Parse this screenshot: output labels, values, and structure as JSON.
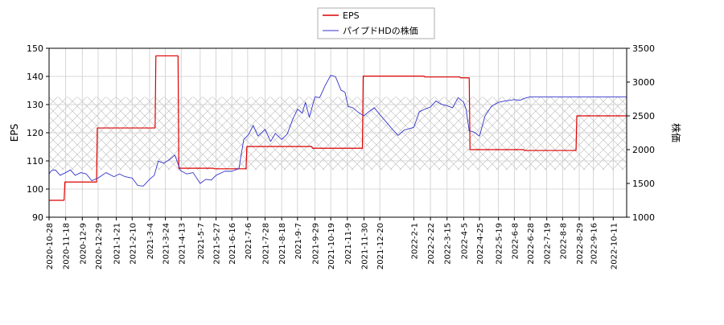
{
  "chart_data": {
    "type": "line",
    "title": "",
    "xlabel": "",
    "ylabel": "EPS",
    "y2label": "株価",
    "ylim": [
      90,
      150
    ],
    "y2lim": [
      1000,
      3500
    ],
    "yticks": [
      90,
      100,
      110,
      120,
      130,
      140,
      150
    ],
    "y2ticks": [
      1000,
      1500,
      2000,
      2500,
      3000,
      3500
    ],
    "xrange": [
      "2020-10-28",
      "2022-10-28"
    ],
    "xticks": [
      "2020-10-28",
      "2020-11-18",
      "2020-12-9",
      "2020-12-29",
      "2021-1-21",
      "2021-2-10",
      "2021-3-4",
      "2021-3-24",
      "2021-4-13",
      "2021-5-7",
      "2021-5-27",
      "2021-6-16",
      "2021-7-6",
      "2021-7-28",
      "2021-8-18",
      "2021-9-7",
      "2021-9-29",
      "2021-10-19",
      "2021-11-9",
      "2021-11-30",
      "2021-12-20",
      "2022-2-1",
      "2022-2-22",
      "2022-3-15",
      "2022-4-5",
      "2022-4-25",
      "2022-5-19",
      "2022-6-8",
      "2022-6-28",
      "2022-7-19",
      "2022-8-8",
      "2022-8-29",
      "2022-9-16",
      "2022-10-11"
    ],
    "grid": true,
    "legend_position": "top-center",
    "band": {
      "axis": "y2",
      "range": [
        1700,
        2780
      ]
    },
    "series": [
      {
        "name": "EPS",
        "axis": "y",
        "color": "#dd0000",
        "step": true,
        "points": [
          [
            "2020-10-28",
            96.0
          ],
          [
            "2020-11-16",
            96.0
          ],
          [
            "2020-11-17",
            102.5
          ],
          [
            "2020-12-27",
            102.5
          ],
          [
            "2020-12-28",
            121.7
          ],
          [
            "2021-3-11",
            121.7
          ],
          [
            "2021-3-12",
            147.3
          ],
          [
            "2021-4-9",
            147.3
          ],
          [
            "2021-4-10",
            107.4
          ],
          [
            "2021-5-24",
            107.4
          ],
          [
            "2021-5-25",
            107.2
          ],
          [
            "2021-7-4",
            107.2
          ],
          [
            "2021-7-5",
            115.1
          ],
          [
            "2021-9-25",
            115.1
          ],
          [
            "2021-9-26",
            114.5
          ],
          [
            "2021-11-28",
            114.5
          ],
          [
            "2021-11-29",
            140.1
          ],
          [
            "2022-2-14",
            140.1
          ],
          [
            "2022-2-15",
            139.8
          ],
          [
            "2022-3-31",
            139.8
          ],
          [
            "2022-4-1",
            139.5
          ],
          [
            "2022-4-12",
            139.5
          ],
          [
            "2022-4-13",
            114.0
          ],
          [
            "2022-6-20",
            114.0
          ],
          [
            "2022-6-21",
            113.7
          ],
          [
            "2022-8-25",
            113.7
          ],
          [
            "2022-8-26",
            126.0
          ],
          [
            "2022-10-28",
            126.0
          ]
        ]
      },
      {
        "name": "パイプドHDの株価",
        "axis": "y2",
        "color": "#3333cc",
        "step": false,
        "points": [
          [
            "2020-10-28",
            1640
          ],
          [
            "2020-10-31",
            1690
          ],
          [
            "2020-11-5",
            1700
          ],
          [
            "2020-11-11",
            1620
          ],
          [
            "2020-11-18",
            1660
          ],
          [
            "2020-11-24",
            1700
          ],
          [
            "2020-11-30",
            1620
          ],
          [
            "2020-12-7",
            1660
          ],
          [
            "2020-12-14",
            1640
          ],
          [
            "2020-12-21",
            1540
          ],
          [
            "2020-12-29",
            1580
          ],
          [
            "2021-1-8",
            1660
          ],
          [
            "2021-1-18",
            1600
          ],
          [
            "2021-1-25",
            1640
          ],
          [
            "2021-2-1",
            1600
          ],
          [
            "2021-2-10",
            1580
          ],
          [
            "2021-2-17",
            1470
          ],
          [
            "2021-2-24",
            1460
          ],
          [
            "2021-3-4",
            1560
          ],
          [
            "2021-3-10",
            1620
          ],
          [
            "2021-3-15",
            1830
          ],
          [
            "2021-3-22",
            1800
          ],
          [
            "2021-3-29",
            1850
          ],
          [
            "2021-4-5",
            1920
          ],
          [
            "2021-4-12",
            1690
          ],
          [
            "2021-4-20",
            1640
          ],
          [
            "2021-4-28",
            1660
          ],
          [
            "2021-5-7",
            1500
          ],
          [
            "2021-5-14",
            1560
          ],
          [
            "2021-5-21",
            1550
          ],
          [
            "2021-5-27",
            1620
          ],
          [
            "2021-6-7",
            1680
          ],
          [
            "2021-6-16",
            1680
          ],
          [
            "2021-6-25",
            1720
          ],
          [
            "2021-7-1",
            2150
          ],
          [
            "2021-7-7",
            2220
          ],
          [
            "2021-7-13",
            2360
          ],
          [
            "2021-7-19",
            2200
          ],
          [
            "2021-7-28",
            2300
          ],
          [
            "2021-8-4",
            2120
          ],
          [
            "2021-8-10",
            2240
          ],
          [
            "2021-8-18",
            2150
          ],
          [
            "2021-8-25",
            2230
          ],
          [
            "2021-9-1",
            2450
          ],
          [
            "2021-9-7",
            2600
          ],
          [
            "2021-9-13",
            2540
          ],
          [
            "2021-9-17",
            2700
          ],
          [
            "2021-9-22",
            2480
          ],
          [
            "2021-9-29",
            2780
          ],
          [
            "2021-10-5",
            2770
          ],
          [
            "2021-10-12",
            2950
          ],
          [
            "2021-10-19",
            3100
          ],
          [
            "2021-10-25",
            3080
          ],
          [
            "2021-11-1",
            2880
          ],
          [
            "2021-11-6",
            2850
          ],
          [
            "2021-11-10",
            2640
          ],
          [
            "2021-11-16",
            2620
          ],
          [
            "2021-11-23",
            2550
          ],
          [
            "2021-11-30",
            2500
          ],
          [
            "2021-12-6",
            2560
          ],
          [
            "2021-12-13",
            2620
          ],
          [
            "2021-12-20",
            2520
          ],
          [
            "2022-1-5",
            2300
          ],
          [
            "2022-1-12",
            2210
          ],
          [
            "2022-1-20",
            2290
          ],
          [
            "2022-2-1",
            2330
          ],
          [
            "2022-2-8",
            2560
          ],
          [
            "2022-2-15",
            2600
          ],
          [
            "2022-2-22",
            2630
          ],
          [
            "2022-3-1",
            2720
          ],
          [
            "2022-3-8",
            2670
          ],
          [
            "2022-3-15",
            2650
          ],
          [
            "2022-3-22",
            2620
          ],
          [
            "2022-3-29",
            2770
          ],
          [
            "2022-4-5",
            2700
          ],
          [
            "2022-4-8",
            2600
          ],
          [
            "2022-4-12",
            2280
          ],
          [
            "2022-4-18",
            2260
          ],
          [
            "2022-4-25",
            2200
          ],
          [
            "2022-5-2",
            2500
          ],
          [
            "2022-5-10",
            2640
          ],
          [
            "2022-5-19",
            2700
          ],
          [
            "2022-5-27",
            2720
          ],
          [
            "2022-6-8",
            2740
          ],
          [
            "2022-6-15",
            2730
          ],
          [
            "2022-6-21",
            2760
          ],
          [
            "2022-6-28",
            2780
          ],
          [
            "2022-10-28",
            2780
          ]
        ]
      }
    ]
  }
}
